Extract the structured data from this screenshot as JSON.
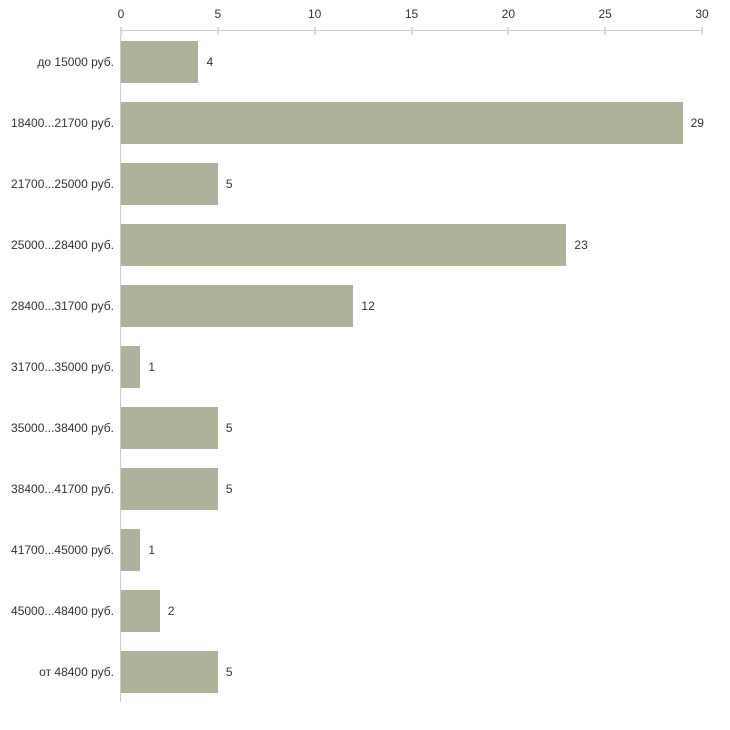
{
  "chart_data": {
    "type": "bar",
    "orientation": "horizontal",
    "title": "",
    "xlabel": "",
    "ylabel": "",
    "categories": [
      "до 15000 руб.",
      "18400...21700 руб.",
      "21700...25000 руб.",
      "25000...28400 руб.",
      "28400...31700 руб.",
      "31700...35000 руб.",
      "35000...38400 руб.",
      "38400...41700 руб.",
      "41700...45000 руб.",
      "45000...48400 руб.",
      "от 48400 руб."
    ],
    "values": [
      4,
      29,
      5,
      23,
      12,
      1,
      5,
      5,
      1,
      2,
      5
    ],
    "x_ticks": [
      0,
      5,
      10,
      15,
      20,
      25,
      30
    ],
    "xlim": [
      0,
      30
    ],
    "grid": false,
    "legend": false,
    "axis_position": "top-left",
    "colors": {
      "bar": "#adb39a",
      "axis": "#cccccc",
      "tick": "#d9dcc0",
      "text": "#333333",
      "background": "#ffffff"
    }
  }
}
